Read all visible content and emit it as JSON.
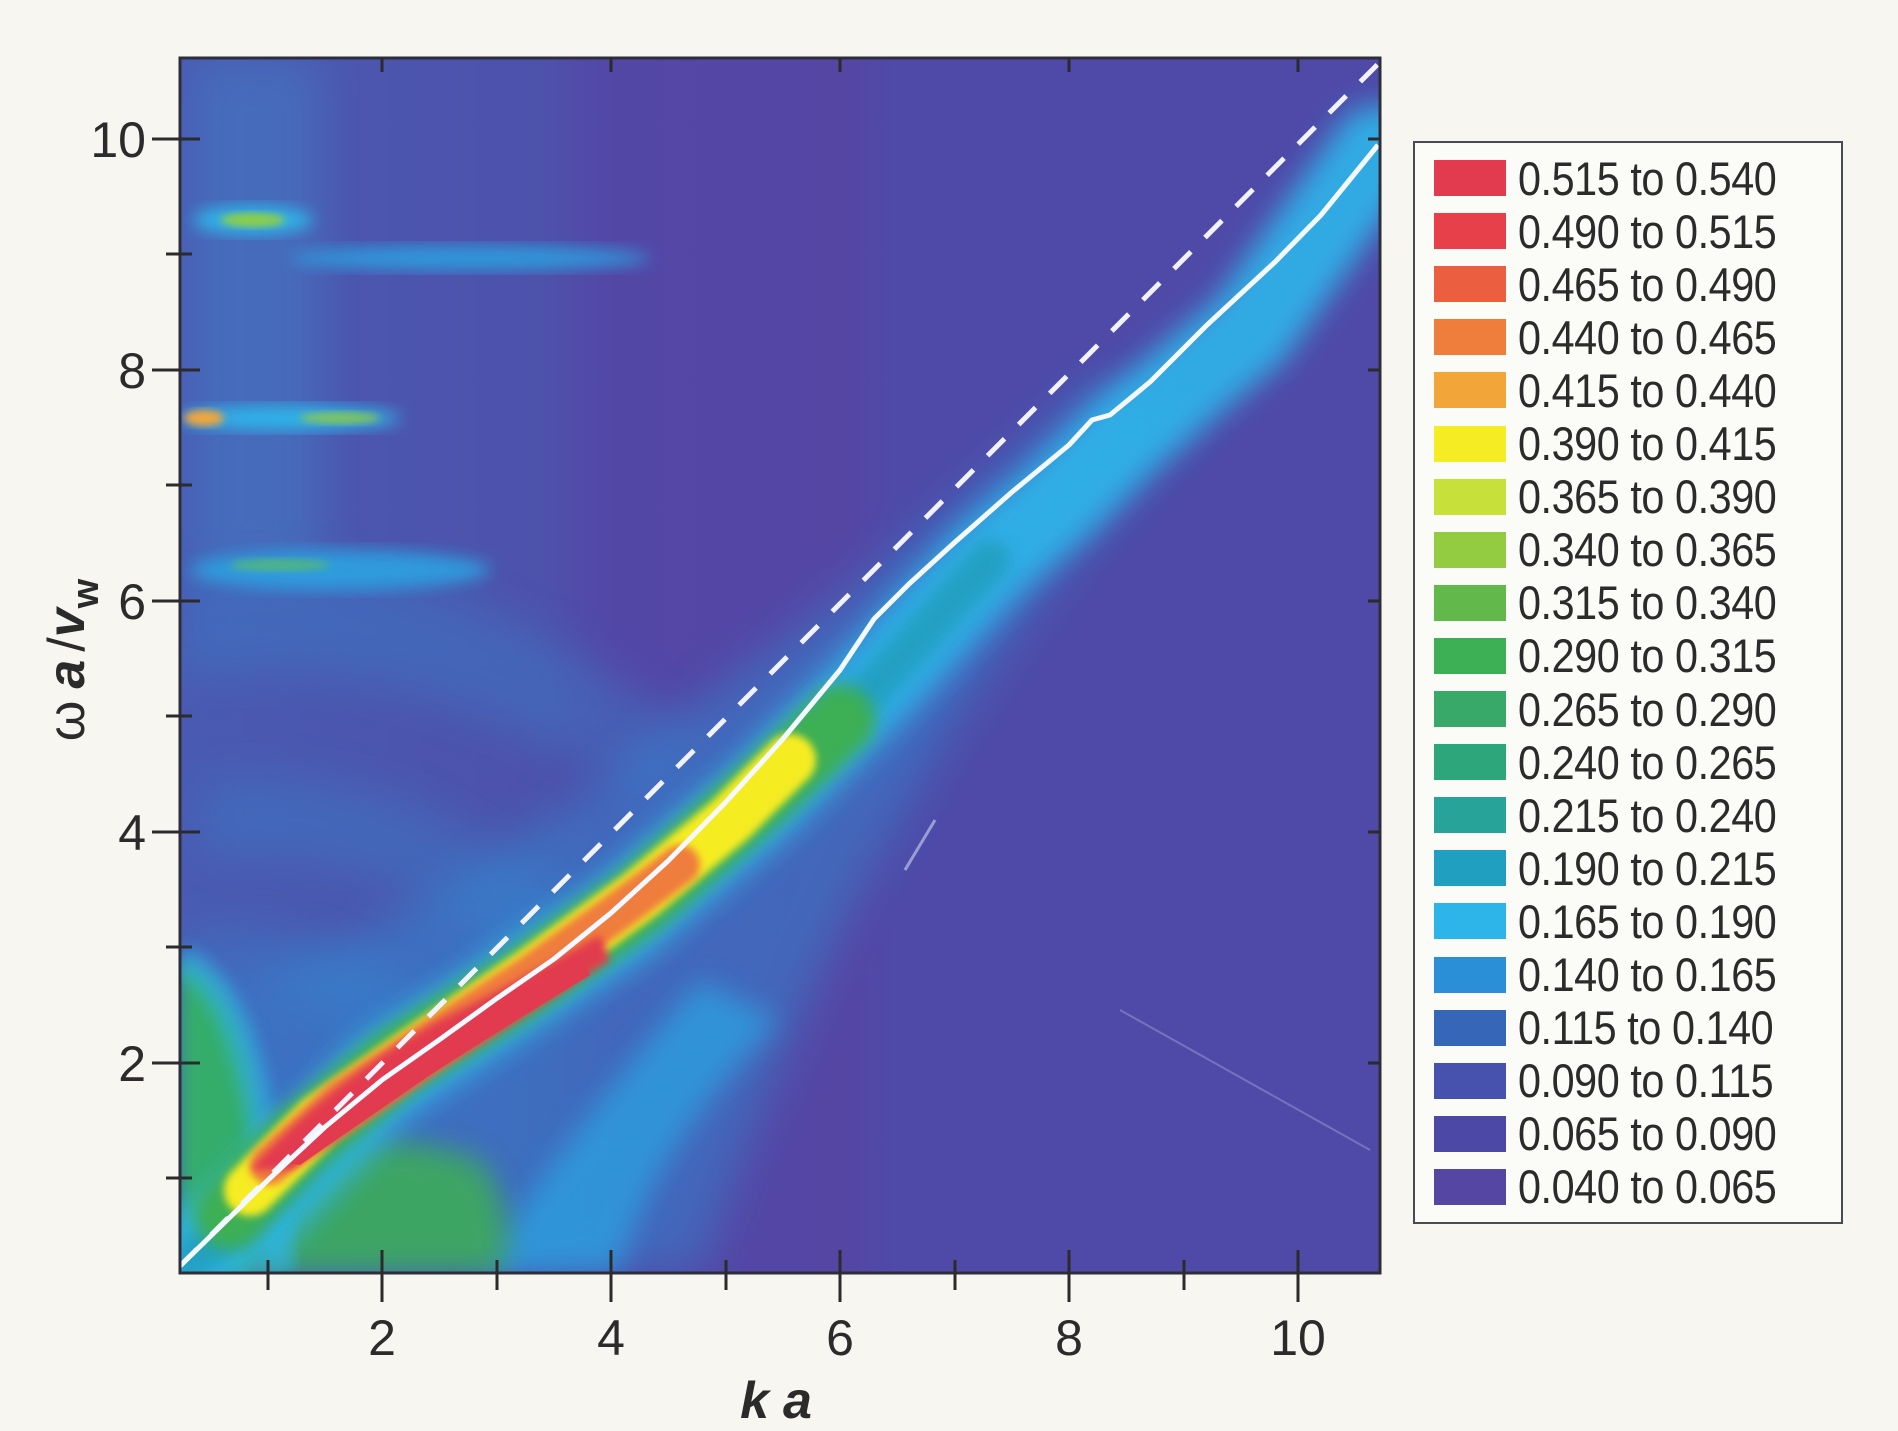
{
  "chart_data": {
    "type": "heatmap",
    "title": "",
    "xlabel": "k a",
    "ylabel": "ω a / v_w",
    "ylabel_parts": {
      "omega": "ω",
      "a": "a",
      "slash": "/",
      "v": "v",
      "sub": "w"
    },
    "xlim": [
      0.24,
      10.72
    ],
    "ylim": [
      0.18,
      10.7
    ],
    "x_ticks_major": [
      2,
      4,
      6,
      8,
      10
    ],
    "x_ticks_minor": [
      1,
      3,
      5,
      7,
      9
    ],
    "y_ticks_major": [
      2,
      4,
      6,
      8,
      10
    ],
    "y_ticks_minor": [
      1,
      3,
      5,
      7,
      9
    ],
    "grid": false,
    "legend_position": "right",
    "legend": [
      {
        "range": "0.515 to 0.540",
        "min": 0.515,
        "max": 0.54,
        "color": "#e23a4e"
      },
      {
        "range": "0.490 to 0.515",
        "min": 0.49,
        "max": 0.515,
        "color": "#e8404a"
      },
      {
        "range": "0.465 to 0.490",
        "min": 0.465,
        "max": 0.49,
        "color": "#ec5e40"
      },
      {
        "range": "0.440 to 0.465",
        "min": 0.44,
        "max": 0.465,
        "color": "#ef7d3c"
      },
      {
        "range": "0.415 to 0.440",
        "min": 0.415,
        "max": 0.44,
        "color": "#f2a63a"
      },
      {
        "range": "0.390 to 0.415",
        "min": 0.39,
        "max": 0.415,
        "color": "#f6ec24"
      },
      {
        "range": "0.365 to 0.390",
        "min": 0.365,
        "max": 0.39,
        "color": "#c7e03a"
      },
      {
        "range": "0.340 to 0.365",
        "min": 0.34,
        "max": 0.365,
        "color": "#93cc40"
      },
      {
        "range": "0.315 to 0.340",
        "min": 0.315,
        "max": 0.34,
        "color": "#62b84a"
      },
      {
        "range": "0.290 to 0.315",
        "min": 0.29,
        "max": 0.315,
        "color": "#3daf55"
      },
      {
        "range": "0.265 to 0.290",
        "min": 0.265,
        "max": 0.29,
        "color": "#38a968"
      },
      {
        "range": "0.240 to 0.265",
        "min": 0.24,
        "max": 0.265,
        "color": "#2ea67c"
      },
      {
        "range": "0.215 to 0.240",
        "min": 0.215,
        "max": 0.24,
        "color": "#27a39a"
      },
      {
        "range": "0.190 to 0.215",
        "min": 0.19,
        "max": 0.215,
        "color": "#209fc0"
      },
      {
        "range": "0.165 to 0.190",
        "min": 0.165,
        "max": 0.19,
        "color": "#2db5ea"
      },
      {
        "range": "0.140 to 0.165",
        "min": 0.14,
        "max": 0.165,
        "color": "#2a8fd6"
      },
      {
        "range": "0.115 to 0.140",
        "min": 0.115,
        "max": 0.14,
        "color": "#3566b8"
      },
      {
        "range": "0.090 to 0.115",
        "min": 0.09,
        "max": 0.115,
        "color": "#4652ad"
      },
      {
        "range": "0.065 to 0.090",
        "min": 0.065,
        "max": 0.09,
        "color": "#4c48a6"
      },
      {
        "range": "0.040 to 0.065",
        "min": 0.04,
        "max": 0.065,
        "color": "#5546a3"
      }
    ],
    "series": [
      {
        "name": "dashed reference line (ω = k)",
        "style": "dashed",
        "color": "#ffffff",
        "x": [
          0.24,
          10.72
        ],
        "y": [
          0.24,
          10.65
        ]
      },
      {
        "name": "solid dispersion curve",
        "style": "solid",
        "color": "#ffffff",
        "x": [
          0.24,
          0.6,
          1.0,
          1.5,
          2.0,
          2.5,
          3.0,
          3.5,
          4.0,
          4.5,
          5.0,
          5.5,
          6.0,
          6.3,
          6.6,
          7.0,
          7.5,
          8.0,
          8.2,
          8.35,
          8.7,
          9.2,
          9.8,
          10.2,
          10.72
        ],
        "y": [
          0.24,
          0.6,
          1.0,
          1.45,
          1.85,
          2.2,
          2.55,
          2.9,
          3.3,
          3.75,
          4.25,
          4.8,
          5.4,
          5.85,
          6.15,
          6.5,
          6.95,
          7.35,
          7.57,
          7.62,
          7.9,
          8.4,
          8.95,
          9.35,
          9.95
        ]
      }
    ],
    "features": [
      {
        "name": "high-intensity red band",
        "value_range": "0.49-0.54",
        "x_range": [
          0.8,
          3.0
        ],
        "y_range": [
          1.0,
          2.6
        ]
      },
      {
        "name": "yellow/green ridge along curve",
        "x_range": [
          3.0,
          5.5
        ],
        "y_range": [
          2.6,
          5.0
        ]
      },
      {
        "name": "green low-k region",
        "x_range": [
          0.24,
          2.5
        ],
        "y_range": [
          0.18,
          2.8
        ]
      },
      {
        "name": "horizontal streak",
        "y": 9.3,
        "x_range": [
          0.4,
          1.3
        ]
      },
      {
        "name": "horizontal streak",
        "y": 9.0,
        "x_range": [
          1.0,
          4.3
        ]
      },
      {
        "name": "horizontal streak",
        "y": 7.6,
        "x_range": [
          0.24,
          2.3
        ]
      },
      {
        "name": "horizontal streak",
        "y": 6.3,
        "x_range": [
          0.5,
          3.2
        ]
      }
    ]
  },
  "axes": {
    "x_tick_labels": [
      "2",
      "4",
      "6",
      "8",
      "10"
    ],
    "y_tick_labels": [
      "2",
      "4",
      "6",
      "8",
      "10"
    ],
    "x_title_k": "k",
    "x_title_a": "a",
    "y_title_omega": "ω",
    "y_title_a": "a",
    "y_title_slash": "/",
    "y_title_v": "v",
    "y_title_sub": "w"
  },
  "legend": {
    "labels": [
      "0.515 to 0.540",
      "0.490 to 0.515",
      "0.465 to 0.490",
      "0.440 to 0.465",
      "0.415 to 0.440",
      "0.390 to 0.415",
      "0.365 to 0.390",
      "0.340 to 0.365",
      "0.315 to 0.340",
      "0.290 to 0.315",
      "0.265 to 0.290",
      "0.240 to 0.265",
      "0.215 to 0.240",
      "0.190 to 0.215",
      "0.165 to 0.190",
      "0.140 to 0.165",
      "0.115 to 0.140",
      "0.090 to 0.115",
      "0.065 to 0.090",
      "0.040 to 0.065"
    ],
    "colors": [
      "#e23a4e",
      "#e8404a",
      "#ec5e40",
      "#ef7d3c",
      "#f2a63a",
      "#f6ec24",
      "#c7e03a",
      "#93cc40",
      "#62b84a",
      "#3daf55",
      "#38a968",
      "#2ea67c",
      "#27a39a",
      "#209fc0",
      "#2db5ea",
      "#2a8fd6",
      "#3566b8",
      "#4652ad",
      "#4c48a6",
      "#5546a3"
    ]
  }
}
